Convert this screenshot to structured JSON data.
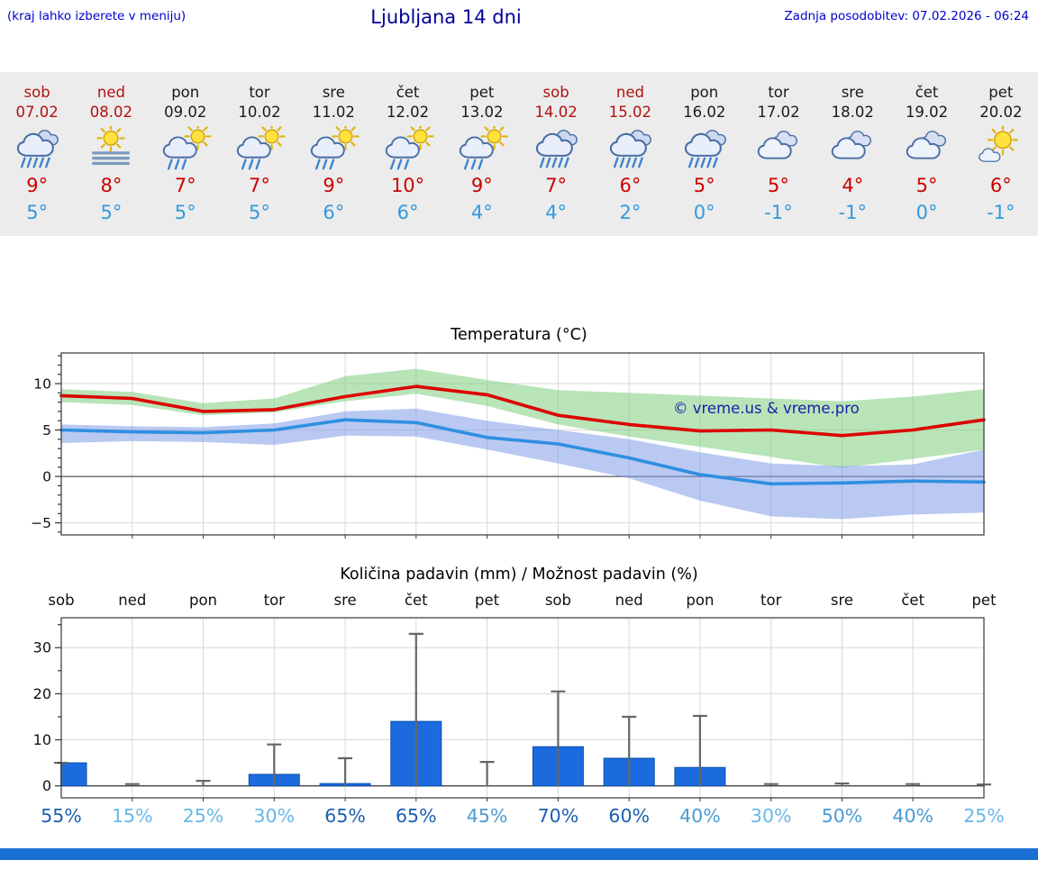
{
  "header": {
    "left_note": "(kraj lahko izberete v meniju)",
    "title": "Ljubljana 14 dni",
    "last_update": "Zadnja posodobitev: 07.02.2026 - 06:24"
  },
  "forecast_days": [
    {
      "day": "sob",
      "date": "07.02",
      "weekend": true,
      "icon": "rain",
      "high": "9°",
      "low": "5°"
    },
    {
      "day": "ned",
      "date": "08.02",
      "weekend": true,
      "icon": "sun-fog",
      "high": "8°",
      "low": "5°"
    },
    {
      "day": "pon",
      "date": "09.02",
      "weekend": false,
      "icon": "sun-rain",
      "high": "7°",
      "low": "5°"
    },
    {
      "day": "tor",
      "date": "10.02",
      "weekend": false,
      "icon": "sun-rain",
      "high": "7°",
      "low": "5°"
    },
    {
      "day": "sre",
      "date": "11.02",
      "weekend": false,
      "icon": "sun-rain",
      "high": "9°",
      "low": "6°"
    },
    {
      "day": "čet",
      "date": "12.02",
      "weekend": false,
      "icon": "sun-rain",
      "high": "10°",
      "low": "6°"
    },
    {
      "day": "pet",
      "date": "13.02",
      "weekend": false,
      "icon": "sun-rain",
      "high": "9°",
      "low": "4°"
    },
    {
      "day": "sob",
      "date": "14.02",
      "weekend": true,
      "icon": "rain",
      "high": "7°",
      "low": "4°"
    },
    {
      "day": "ned",
      "date": "15.02",
      "weekend": true,
      "icon": "rain",
      "high": "6°",
      "low": "2°"
    },
    {
      "day": "pon",
      "date": "16.02",
      "weekend": false,
      "icon": "rain",
      "high": "5°",
      "low": "0°"
    },
    {
      "day": "tor",
      "date": "17.02",
      "weekend": false,
      "icon": "cloud",
      "high": "5°",
      "low": "-1°"
    },
    {
      "day": "sre",
      "date": "18.02",
      "weekend": false,
      "icon": "cloud",
      "high": "4°",
      "low": "-1°"
    },
    {
      "day": "čet",
      "date": "19.02",
      "weekend": false,
      "icon": "cloud",
      "high": "5°",
      "low": "0°"
    },
    {
      "day": "pet",
      "date": "20.02",
      "weekend": false,
      "icon": "sun-cloud",
      "high": "6°",
      "low": "-1°"
    }
  ],
  "chart_data": [
    {
      "type": "line",
      "title": "Temperatura (°C)",
      "x_labels": [
        "sob",
        "ned",
        "pon",
        "tor",
        "sre",
        "čet",
        "pet",
        "sob",
        "ned",
        "pon",
        "tor",
        "sre",
        "čet",
        "pet"
      ],
      "ylim": [
        -6.3,
        13.3
      ],
      "yticks": [
        -5,
        0,
        5,
        10
      ],
      "series": [
        {
          "name": "temperature",
          "color_key": "temp_line_red",
          "values": [
            8.7,
            8.4,
            7.0,
            7.2,
            8.6,
            9.7,
            8.8,
            6.6,
            5.6,
            4.9,
            5.0,
            4.4,
            5.0,
            6.1
          ]
        },
        {
          "name": "min-temperature",
          "color_key": "temp_line_blue",
          "values": [
            5.0,
            4.8,
            4.7,
            5.0,
            6.1,
            5.8,
            4.2,
            3.5,
            2.0,
            0.2,
            -0.8,
            -0.7,
            -0.5,
            -0.6
          ]
        }
      ],
      "bands": [
        {
          "name": "max-range",
          "color_key": "band_green",
          "top": [
            9.4,
            9.1,
            7.9,
            8.4,
            10.8,
            11.6,
            10.4,
            9.3,
            9.0,
            8.7,
            8.4,
            8.1,
            8.6,
            9.4
          ],
          "bottom": [
            8.0,
            7.7,
            6.6,
            6.9,
            8.1,
            8.9,
            7.6,
            5.6,
            4.3,
            3.2,
            2.1,
            0.9,
            1.9,
            2.9
          ]
        },
        {
          "name": "min-range",
          "color_key": "band_blue",
          "top": [
            5.6,
            5.4,
            5.3,
            5.7,
            7.0,
            7.3,
            6.0,
            5.0,
            4.0,
            2.6,
            1.4,
            1.1,
            1.3,
            2.9
          ],
          "bottom": [
            3.6,
            3.8,
            3.7,
            3.4,
            4.4,
            4.3,
            2.9,
            1.4,
            -0.2,
            -2.6,
            -4.3,
            -4.6,
            -4.1,
            -3.9
          ]
        }
      ],
      "watermark": "© vreme.us & vreme.pro"
    },
    {
      "type": "bar",
      "title": "Količina padavin (mm) / Možnost padavin (%)",
      "categories": [
        "sob",
        "ned",
        "pon",
        "tor",
        "sre",
        "čet",
        "pet",
        "sob",
        "ned",
        "pon",
        "tor",
        "sre",
        "čet",
        "pet"
      ],
      "values": [
        5.0,
        0,
        0,
        2.5,
        0.5,
        14.0,
        0,
        8.5,
        6.0,
        4.0,
        0,
        0,
        0,
        0
      ],
      "whisker_max": [
        5.0,
        0.4,
        1.1,
        9.0,
        6.0,
        33.0,
        5.2,
        20.5,
        15.0,
        15.2,
        0.4,
        0.5,
        0.4,
        0.3
      ],
      "probability_pct": [
        55,
        15,
        25,
        30,
        65,
        65,
        45,
        70,
        60,
        40,
        30,
        50,
        40,
        25
      ],
      "ylim": [
        -2.6,
        36.5
      ],
      "yticks": [
        0,
        10,
        20,
        30
      ]
    }
  ],
  "colors": {
    "header_blue": "#0000cc",
    "title_blue": "#000099",
    "weekend_red": "#b31111",
    "high_red": "#cc0000",
    "low_blue": "#3399dd",
    "temp_line_red": "#dd0000",
    "temp_line_blue": "#2f8fe0",
    "band_green": "#7dcd7d",
    "band_blue": "#7f9ce8",
    "bar_blue": "#1b6bdf",
    "bar_edge": "#0b4fae",
    "whisker_gray": "#666666",
    "watermark_blue": "#1c1ca8",
    "pct_dark": "#1c5fb0",
    "pct_mid": "#4a9ad4",
    "pct_light": "#67b8e4",
    "strip_bg": "#ececec",
    "footer_blue": "#1a6fd4"
  }
}
